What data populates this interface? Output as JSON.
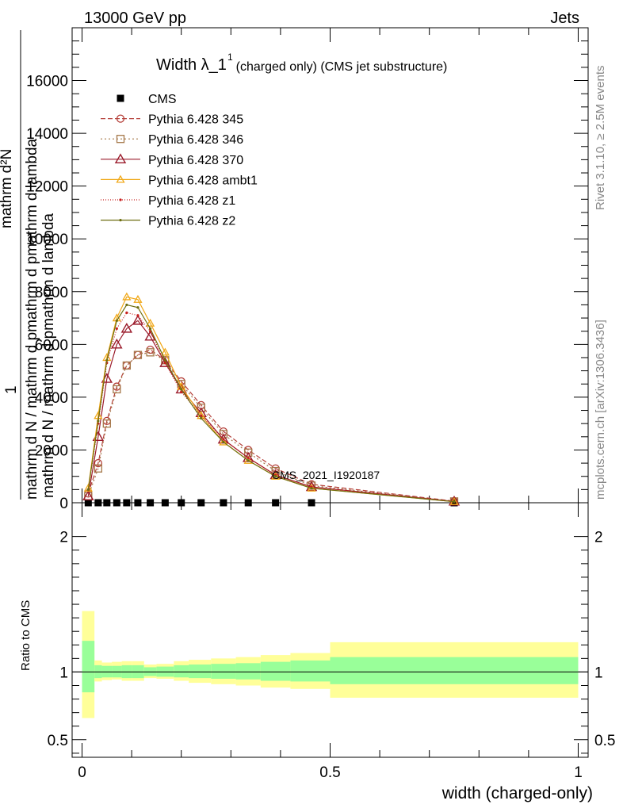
{
  "header": {
    "left": "13000 GeV pp",
    "right": "Jets"
  },
  "side_labels": {
    "rivet": "Rivet 3.1.10, ≥ 2.5M events",
    "mcplots": "mcplots.cern.ch [arXiv:1306.3436]"
  },
  "watermark": "CMS_2021_I1920187",
  "chart_data": [
    {
      "type": "line",
      "title": {
        "main": "Width λ_1",
        "sup": "1",
        "rest": "(charged only) (CMS jet substructure)"
      },
      "ylabel": {
        "top": "mathrm d²N",
        "num_one": "1",
        "bottom": "mathrm d N / mathrm d pmathrm d pmathrm d lambda",
        "bottom_line2": "mathrm d N / mathrm d pmathrm d lambda"
      },
      "ylim": [
        0,
        18000
      ],
      "y_ticks": [
        0,
        2000,
        4000,
        6000,
        8000,
        10000,
        12000,
        14000,
        16000
      ],
      "y_tick_labels": [
        "0",
        "2000",
        "4000",
        "6000",
        "8000",
        "10000",
        "12000",
        "14000",
        "16000"
      ],
      "xlim": [
        -0.02,
        1.02
      ],
      "x": [
        0.0125,
        0.0325,
        0.05,
        0.07,
        0.09,
        0.1125,
        0.1375,
        0.1675,
        0.2,
        0.24,
        0.285,
        0.335,
        0.39,
        0.4625,
        0.75
      ],
      "series": [
        {
          "name": "CMS",
          "color": "#000000",
          "marker": "square",
          "values": [
            0,
            0,
            0,
            0,
            0,
            0,
            0,
            0,
            0,
            0,
            0,
            0,
            0,
            0,
            0
          ]
        },
        {
          "name": "Pythia 6.428 345",
          "color": "#b5403a",
          "dash": "6,3",
          "marker": "circle",
          "values": [
            350,
            1500,
            3100,
            4400,
            5200,
            5600,
            5800,
            5400,
            4600,
            3700,
            2700,
            2000,
            1300,
            700,
            60
          ]
        },
        {
          "name": "Pythia 6.428 346",
          "color": "#a5784a",
          "dash": "2,3",
          "marker": "square-open",
          "values": [
            250,
            1300,
            3000,
            4300,
            5200,
            5600,
            5700,
            5400,
            4500,
            3600,
            2600,
            1900,
            1200,
            650,
            50
          ]
        },
        {
          "name": "Pythia 6.428 370",
          "color": "#9a1a2a",
          "dash": "",
          "marker": "triangle-open",
          "values": [
            250,
            2500,
            4700,
            6000,
            6600,
            6900,
            6300,
            5300,
            4300,
            3400,
            2400,
            1700,
            1050,
            600,
            50
          ]
        },
        {
          "name": "Pythia 6.428 ambt1",
          "color": "#f0a818",
          "dash": "",
          "marker": "triangle-open-small",
          "values": [
            550,
            3300,
            5500,
            7000,
            7800,
            7700,
            6800,
            5700,
            4400,
            3300,
            2300,
            1600,
            1000,
            550,
            40
          ]
        },
        {
          "name": "Pythia 6.428 z1",
          "color": "#c8201e",
          "dash": "1,2",
          "marker": "dot",
          "values": [
            500,
            3000,
            5300,
            6600,
            7200,
            7100,
            6500,
            5300,
            4200,
            3300,
            2400,
            1700,
            1050,
            600,
            40
          ]
        },
        {
          "name": "Pythia 6.428 z2",
          "color": "#6e6e10",
          "dash": "",
          "marker": "dot",
          "values": [
            500,
            3100,
            5400,
            6900,
            7500,
            7400,
            6600,
            5400,
            4300,
            3200,
            2300,
            1600,
            1000,
            550,
            40
          ]
        }
      ]
    },
    {
      "type": "area",
      "ylabel": "Ratio to CMS",
      "ylim": [
        0.37,
        2.25
      ],
      "y_ticks": [
        0.5,
        1,
        2
      ],
      "y_tick_labels": [
        "0.5",
        "1",
        "2"
      ],
      "xlim": [
        -0.02,
        1.02
      ],
      "x_ticks": [
        0,
        0.5,
        1
      ],
      "x_tick_labels": [
        "0",
        "0.5",
        "1"
      ],
      "xlabel": "width (charged-only)",
      "bin_edges": [
        0,
        0.025,
        0.04,
        0.06,
        0.08,
        0.1,
        0.125,
        0.15,
        0.185,
        0.215,
        0.26,
        0.31,
        0.36,
        0.42,
        0.5,
        1.0
      ],
      "band_green_low": [
        0.85,
        0.955,
        0.96,
        0.96,
        0.955,
        0.955,
        0.97,
        0.965,
        0.96,
        0.955,
        0.95,
        0.945,
        0.935,
        0.93,
        0.91
      ],
      "band_green_high": [
        1.23,
        1.05,
        1.045,
        1.045,
        1.05,
        1.05,
        1.035,
        1.04,
        1.05,
        1.055,
        1.06,
        1.065,
        1.075,
        1.085,
        1.11
      ],
      "band_yellow_low": [
        0.66,
        0.93,
        0.94,
        0.945,
        0.935,
        0.935,
        0.955,
        0.95,
        0.935,
        0.92,
        0.91,
        0.9,
        0.885,
        0.875,
        0.81
      ],
      "band_yellow_high": [
        1.45,
        1.085,
        1.07,
        1.075,
        1.08,
        1.08,
        1.055,
        1.06,
        1.08,
        1.09,
        1.1,
        1.11,
        1.125,
        1.14,
        1.22
      ]
    }
  ]
}
